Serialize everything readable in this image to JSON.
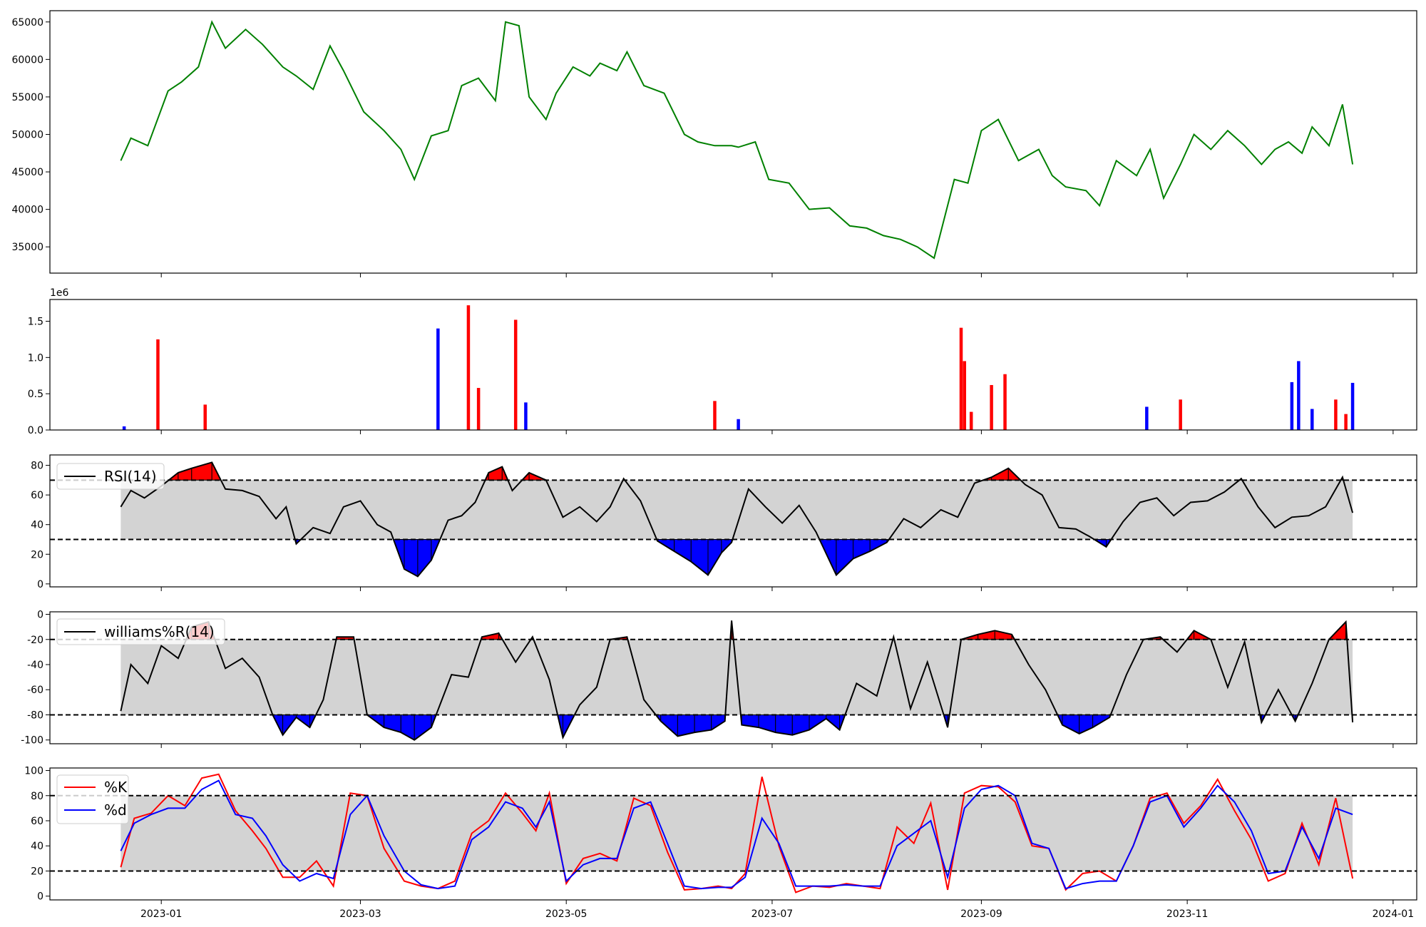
{
  "chart_data": [
    {
      "type": "line",
      "panel": "price",
      "color": "#008000",
      "ylim": [
        31500,
        66500
      ],
      "yticks": [
        35000,
        40000,
        45000,
        50000,
        55000,
        60000,
        65000
      ],
      "x": [
        "2022-12-20",
        "2022-12-23",
        "2022-12-28",
        "2023-01-03",
        "2023-01-07",
        "2023-01-12",
        "2023-01-16",
        "2023-01-20",
        "2023-01-26",
        "2023-01-31",
        "2023-02-06",
        "2023-02-10",
        "2023-02-15",
        "2023-02-20",
        "2023-02-24",
        "2023-03-02",
        "2023-03-08",
        "2023-03-13",
        "2023-03-17",
        "2023-03-22",
        "2023-03-27",
        "2023-03-31",
        "2023-04-05",
        "2023-04-10",
        "2023-04-13",
        "2023-04-17",
        "2023-04-20",
        "2023-04-25",
        "2023-04-28",
        "2023-05-03",
        "2023-05-08",
        "2023-05-11",
        "2023-05-16",
        "2023-05-19",
        "2023-05-24",
        "2023-05-30",
        "2023-06-05",
        "2023-06-09",
        "2023-06-14",
        "2023-06-19",
        "2023-06-21",
        "2023-06-26",
        "2023-06-30",
        "2023-07-06",
        "2023-07-12",
        "2023-07-18",
        "2023-07-24",
        "2023-07-29",
        "2023-08-03",
        "2023-08-08",
        "2023-08-13",
        "2023-08-18",
        "2023-08-24",
        "2023-08-28",
        "2023-09-01",
        "2023-09-06",
        "2023-09-12",
        "2023-09-18",
        "2023-09-22",
        "2023-09-26",
        "2023-10-02",
        "2023-10-06",
        "2023-10-11",
        "2023-10-17",
        "2023-10-21",
        "2023-10-25",
        "2023-10-30",
        "2023-11-03",
        "2023-11-08",
        "2023-11-13",
        "2023-11-18",
        "2023-11-23",
        "2023-11-27",
        "2023-12-01",
        "2023-12-05",
        "2023-12-08",
        "2023-12-13",
        "2023-12-17",
        "2023-12-20"
      ],
      "values": [
        46500,
        49500,
        48500,
        55800,
        57000,
        59000,
        65000,
        61500,
        64000,
        62000,
        59000,
        57800,
        56000,
        61800,
        58500,
        53000,
        50500,
        48000,
        44000,
        49800,
        50500,
        56500,
        57500,
        54500,
        65000,
        64500,
        55000,
        52000,
        55500,
        59000,
        57800,
        59500,
        58500,
        61000,
        56500,
        55500,
        50000,
        49000,
        48500,
        48500,
        48300,
        49000,
        44000,
        43500,
        40000,
        40200,
        37800,
        37500,
        36500,
        36000,
        35000,
        33500,
        44000,
        43500,
        50500,
        52000,
        46500,
        48000,
        44500,
        43000,
        42500,
        40500,
        46500,
        44500,
        48000,
        41500,
        46000,
        50000,
        48000,
        50500,
        48500,
        46000,
        48000,
        49000,
        47500,
        51000,
        48500,
        54000,
        46000
      ],
      "xlim": [
        "2022-11-29",
        "2024-01-08"
      ],
      "xticks": [
        "2023-01",
        "2023-03",
        "2023-05",
        "2023-07",
        "2023-09",
        "2023-11",
        "2024-01"
      ]
    },
    {
      "type": "bar",
      "panel": "volume",
      "offset_label": "1e6",
      "ylim": [
        0,
        1.8
      ],
      "yticks": [
        0.0,
        0.5,
        1.0,
        1.5
      ],
      "up_color": "#ff0000",
      "down_color": "#0000ff",
      "x": [
        "2022-12-21",
        "2022-12-31",
        "2023-01-14",
        "2023-03-24",
        "2023-04-02",
        "2023-04-05",
        "2023-04-16",
        "2023-04-19",
        "2023-06-14",
        "2023-06-21",
        "2023-08-26",
        "2023-08-27",
        "2023-08-29",
        "2023-09-04",
        "2023-09-08",
        "2023-10-20",
        "2023-10-30",
        "2023-12-02",
        "2023-12-04",
        "2023-12-08",
        "2023-12-15",
        "2023-12-18",
        "2023-12-20"
      ],
      "values": [
        0.05,
        1.25,
        0.35,
        1.4,
        1.72,
        0.58,
        1.52,
        0.38,
        0.4,
        0.15,
        1.41,
        0.95,
        0.25,
        0.62,
        0.77,
        0.32,
        0.42,
        0.66,
        0.95,
        0.29,
        0.42,
        0.22,
        0.65
      ],
      "directions": [
        "down",
        "up",
        "up",
        "down",
        "up",
        "up",
        "up",
        "down",
        "up",
        "down",
        "up",
        "up",
        "up",
        "up",
        "up",
        "down",
        "up",
        "down",
        "down",
        "down",
        "up",
        "up",
        "down"
      ]
    },
    {
      "type": "line",
      "panel": "rsi",
      "series": [
        {
          "name": "RSI(14)",
          "color": "#000000"
        }
      ],
      "ylim": [
        -2,
        87
      ],
      "yticks": [
        0,
        20,
        40,
        60,
        80
      ],
      "hlines": [
        30,
        70
      ],
      "band_color": "#d3d3d3",
      "overbought_color": "#ff0000",
      "oversold_color": "#0000ff",
      "x": [
        "2022-12-20",
        "2022-12-23",
        "2022-12-27",
        "2023-01-01",
        "2023-01-06",
        "2023-01-10",
        "2023-01-16",
        "2023-01-20",
        "2023-01-25",
        "2023-01-30",
        "2023-02-04",
        "2023-02-07",
        "2023-02-10",
        "2023-02-15",
        "2023-02-20",
        "2023-02-24",
        "2023-03-01",
        "2023-03-06",
        "2023-03-10",
        "2023-03-14",
        "2023-03-18",
        "2023-03-22",
        "2023-03-27",
        "2023-03-31",
        "2023-04-04",
        "2023-04-08",
        "2023-04-12",
        "2023-04-15",
        "2023-04-20",
        "2023-04-25",
        "2023-04-30",
        "2023-05-05",
        "2023-05-10",
        "2023-05-14",
        "2023-05-18",
        "2023-05-23",
        "2023-05-28",
        "2023-06-02",
        "2023-06-07",
        "2023-06-12",
        "2023-06-16",
        "2023-06-19",
        "2023-06-24",
        "2023-06-29",
        "2023-07-04",
        "2023-07-09",
        "2023-07-14",
        "2023-07-20",
        "2023-07-25",
        "2023-07-30",
        "2023-08-04",
        "2023-08-09",
        "2023-08-14",
        "2023-08-20",
        "2023-08-25",
        "2023-08-30",
        "2023-09-04",
        "2023-09-09",
        "2023-09-14",
        "2023-09-19",
        "2023-09-24",
        "2023-09-29",
        "2023-10-03",
        "2023-10-08",
        "2023-10-13",
        "2023-10-18",
        "2023-10-23",
        "2023-10-28",
        "2023-11-02",
        "2023-11-07",
        "2023-11-12",
        "2023-11-17",
        "2023-11-22",
        "2023-11-27",
        "2023-12-02",
        "2023-12-07",
        "2023-12-12",
        "2023-12-17",
        "2023-12-20"
      ],
      "values": [
        52,
        63,
        58,
        66,
        75,
        78,
        82,
        64,
        63,
        59,
        44,
        52,
        27,
        38,
        34,
        52,
        56,
        40,
        35,
        10,
        5,
        16,
        43,
        46,
        55,
        75,
        79,
        63,
        75,
        70,
        45,
        52,
        42,
        52,
        71,
        56,
        29,
        22,
        15,
        6,
        21,
        28,
        64,
        52,
        41,
        53,
        35,
        6,
        17,
        22,
        28,
        44,
        38,
        50,
        45,
        68,
        72,
        78,
        67,
        60,
        38,
        37,
        32,
        25,
        42,
        55,
        58,
        46,
        55,
        56,
        62,
        71,
        52,
        38,
        45,
        46,
        52,
        72,
        48
      ]
    },
    {
      "type": "line",
      "panel": "williams",
      "series": [
        {
          "name": "williams%R(14)",
          "color": "#000000"
        }
      ],
      "ylim": [
        -103,
        2
      ],
      "yticks": [
        0,
        -20,
        -40,
        -60,
        -80,
        -100
      ],
      "hlines": [
        -20,
        -80
      ],
      "band_color": "#d3d3d3",
      "overbought_color": "#ff0000",
      "oversold_color": "#0000ff",
      "x": [
        "2022-12-20",
        "2022-12-23",
        "2022-12-28",
        "2023-01-01",
        "2023-01-06",
        "2023-01-10",
        "2023-01-15",
        "2023-01-20",
        "2023-01-25",
        "2023-01-30",
        "2023-02-03",
        "2023-02-06",
        "2023-02-10",
        "2023-02-14",
        "2023-02-18",
        "2023-02-22",
        "2023-02-27",
        "2023-03-03",
        "2023-03-08",
        "2023-03-13",
        "2023-03-17",
        "2023-03-22",
        "2023-03-28",
        "2023-04-02",
        "2023-04-06",
        "2023-04-11",
        "2023-04-16",
        "2023-04-21",
        "2023-04-26",
        "2023-04-30",
        "2023-05-05",
        "2023-05-10",
        "2023-05-14",
        "2023-05-19",
        "2023-05-24",
        "2023-05-29",
        "2023-06-03",
        "2023-06-08",
        "2023-06-13",
        "2023-06-17",
        "2023-06-19",
        "2023-06-22",
        "2023-06-27",
        "2023-07-02",
        "2023-07-07",
        "2023-07-12",
        "2023-07-17",
        "2023-07-21",
        "2023-07-26",
        "2023-08-01",
        "2023-08-06",
        "2023-08-11",
        "2023-08-16",
        "2023-08-22",
        "2023-08-26",
        "2023-08-31",
        "2023-09-05",
        "2023-09-10",
        "2023-09-15",
        "2023-09-20",
        "2023-09-25",
        "2023-09-30",
        "2023-10-04",
        "2023-10-09",
        "2023-10-14",
        "2023-10-19",
        "2023-10-24",
        "2023-10-29",
        "2023-11-03",
        "2023-11-08",
        "2023-11-13",
        "2023-11-18",
        "2023-11-23",
        "2023-11-28",
        "2023-12-03",
        "2023-12-08",
        "2023-12-13",
        "2023-12-18",
        "2023-12-20"
      ],
      "values": [
        -77,
        -40,
        -55,
        -25,
        -35,
        -10,
        -6,
        -43,
        -35,
        -50,
        -80,
        -96,
        -82,
        -90,
        -68,
        -18,
        -18,
        -80,
        -90,
        -94,
        -100,
        -90,
        -48,
        -50,
        -18,
        -15,
        -38,
        -18,
        -52,
        -98,
        -72,
        -58,
        -20,
        -18,
        -68,
        -85,
        -97,
        -94,
        -92,
        -85,
        -5,
        -88,
        -90,
        -94,
        -96,
        -92,
        -83,
        -92,
        -55,
        -65,
        -18,
        -75,
        -38,
        -90,
        -20,
        -16,
        -13,
        -16,
        -40,
        -60,
        -88,
        -95,
        -90,
        -82,
        -48,
        -20,
        -18,
        -30,
        -13,
        -20,
        -58,
        -22,
        -86,
        -60,
        -85,
        -55,
        -20,
        -6,
        -86
      ]
    },
    {
      "type": "line",
      "panel": "stochastic",
      "series": [
        {
          "name": "%K",
          "color": "#ff0000"
        },
        {
          "name": "%d",
          "color": "#0000ff"
        }
      ],
      "ylim": [
        -3,
        102
      ],
      "yticks": [
        0,
        20,
        40,
        60,
        80,
        100
      ],
      "hlines": [
        20,
        80
      ],
      "band_color": "#d3d3d3",
      "x": [
        "2022-12-20",
        "2022-12-24",
        "2022-12-29",
        "2023-01-03",
        "2023-01-08",
        "2023-01-13",
        "2023-01-18",
        "2023-01-23",
        "2023-01-28",
        "2023-02-01",
        "2023-02-06",
        "2023-02-11",
        "2023-02-16",
        "2023-02-21",
        "2023-02-26",
        "2023-03-03",
        "2023-03-08",
        "2023-03-14",
        "2023-03-19",
        "2023-03-24",
        "2023-03-29",
        "2023-04-03",
        "2023-04-08",
        "2023-04-13",
        "2023-04-18",
        "2023-04-22",
        "2023-04-26",
        "2023-05-01",
        "2023-05-06",
        "2023-05-11",
        "2023-05-16",
        "2023-05-21",
        "2023-05-26",
        "2023-05-31",
        "2023-06-05",
        "2023-06-10",
        "2023-06-15",
        "2023-06-19",
        "2023-06-23",
        "2023-06-28",
        "2023-07-03",
        "2023-07-08",
        "2023-07-13",
        "2023-07-18",
        "2023-07-23",
        "2023-07-28",
        "2023-08-02",
        "2023-08-07",
        "2023-08-12",
        "2023-08-17",
        "2023-08-22",
        "2023-08-27",
        "2023-09-01",
        "2023-09-06",
        "2023-09-11",
        "2023-09-16",
        "2023-09-21",
        "2023-09-26",
        "2023-10-01",
        "2023-10-06",
        "2023-10-11",
        "2023-10-16",
        "2023-10-21",
        "2023-10-26",
        "2023-10-31",
        "2023-11-05",
        "2023-11-10",
        "2023-11-15",
        "2023-11-20",
        "2023-11-25",
        "2023-11-30",
        "2023-12-05",
        "2023-12-10",
        "2023-12-15",
        "2023-12-20"
      ],
      "series_k": [
        23,
        62,
        66,
        80,
        72,
        94,
        97,
        68,
        52,
        38,
        15,
        15,
        28,
        8,
        82,
        80,
        38,
        12,
        8,
        6,
        12,
        50,
        60,
        82,
        66,
        52,
        82,
        10,
        30,
        34,
        28,
        78,
        72,
        35,
        5,
        6,
        8,
        6,
        18,
        95,
        40,
        3,
        8,
        7,
        10,
        8,
        6,
        55,
        42,
        74,
        5,
        82,
        88,
        87,
        75,
        40,
        38,
        5,
        18,
        20,
        12,
        40,
        78,
        82,
        58,
        72,
        93,
        68,
        45,
        12,
        18,
        58,
        25,
        78,
        14
      ],
      "series_d": [
        36,
        58,
        65,
        70,
        70,
        85,
        92,
        65,
        62,
        48,
        25,
        12,
        18,
        14,
        65,
        80,
        48,
        20,
        9,
        6,
        8,
        45,
        55,
        75,
        70,
        55,
        75,
        12,
        25,
        30,
        30,
        70,
        75,
        42,
        8,
        6,
        7,
        7,
        15,
        62,
        42,
        8,
        8,
        8,
        9,
        8,
        8,
        40,
        50,
        60,
        15,
        70,
        85,
        88,
        80,
        42,
        38,
        6,
        10,
        12,
        12,
        40,
        75,
        80,
        55,
        70,
        88,
        75,
        52,
        18,
        20,
        55,
        30,
        70,
        65
      ]
    }
  ]
}
